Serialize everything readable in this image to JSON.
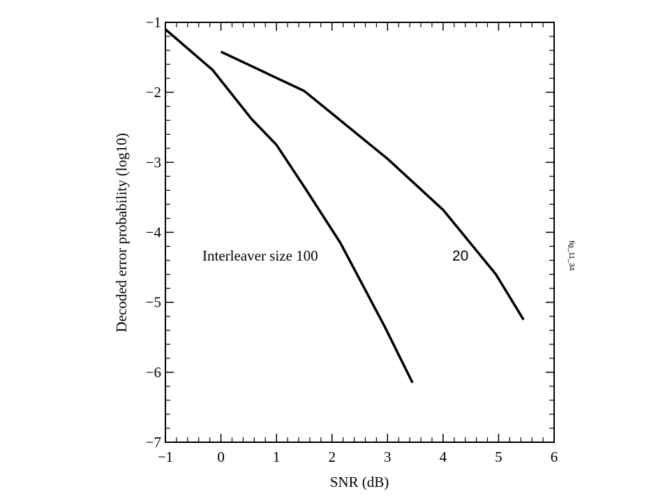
{
  "chart_data": {
    "type": "line",
    "title": "",
    "xlabel": "SNR (dB)",
    "ylabel": "Decoded error probability (log10)",
    "xlim": [
      -1,
      6
    ],
    "ylim": [
      -7,
      -1
    ],
    "xticks": [
      -1,
      0,
      1,
      2,
      3,
      4,
      5,
      6
    ],
    "yticks": [
      -1,
      -2,
      -3,
      -4,
      -5,
      -6,
      -7
    ],
    "xtick_labels": [
      "−1",
      "0",
      "1",
      "2",
      "3",
      "4",
      "5",
      "6"
    ],
    "ytick_labels": [
      "−1",
      "−2",
      "−3",
      "−4",
      "−5",
      "−6",
      "−7"
    ],
    "grid": false,
    "series": [
      {
        "x": [
          -1.0,
          -0.15,
          0.55,
          1.0,
          1.5,
          2.15,
          2.95,
          3.45
        ],
        "y": [
          -1.1,
          -1.68,
          -2.38,
          -2.75,
          -3.35,
          -4.15,
          -5.35,
          -6.15
        ]
      },
      {
        "x": [
          0.0,
          1.5,
          3.0,
          4.0,
          4.95,
          5.45
        ],
        "y": [
          -1.42,
          -1.98,
          -2.95,
          -3.68,
          -4.6,
          -5.25
        ]
      }
    ],
    "annotations": [
      {
        "text": "Interleaver size 100"
      },
      {
        "text": "20"
      }
    ],
    "side_label": "fig_11_34"
  }
}
